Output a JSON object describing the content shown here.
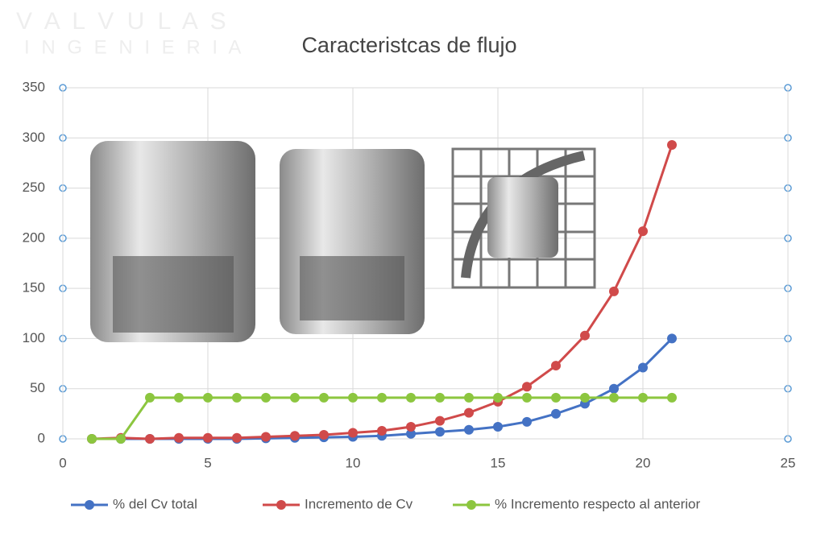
{
  "watermark": [
    "V A L V U L A S",
    "I N G E N I E R I A"
  ],
  "chart_data": {
    "type": "line",
    "title": "Caracteristcas de flujo",
    "x": [
      1,
      2,
      3,
      4,
      5,
      6,
      7,
      8,
      9,
      10,
      11,
      12,
      13,
      14,
      15,
      16,
      17,
      18,
      19,
      20,
      21
    ],
    "series": [
      {
        "name": "% del Cv total",
        "color": "#4472c4",
        "values": [
          0,
          0,
          0,
          0,
          0,
          0,
          0.5,
          1,
          1.5,
          2,
          3,
          5,
          7,
          9,
          12,
          17,
          25,
          35,
          50,
          71,
          100
        ]
      },
      {
        "name": "Incremento de Cv",
        "color": "#d04a4a",
        "values": [
          0,
          1,
          0,
          1,
          1,
          1,
          2,
          3,
          4,
          6,
          8,
          12,
          18,
          26,
          37,
          52,
          73,
          103,
          147,
          207,
          293
        ]
      },
      {
        "name": "% Incremento respecto al anterior",
        "color": "#8cc63f",
        "values": [
          0,
          0,
          41,
          41,
          41,
          41,
          41,
          41,
          41,
          41,
          41,
          41,
          41,
          41,
          41,
          41,
          41,
          41,
          41,
          41,
          41
        ]
      }
    ],
    "xlim": [
      0,
      25
    ],
    "xticks": [
      0,
      5,
      10,
      15,
      20,
      25
    ],
    "ylim": [
      0,
      350
    ],
    "yticks": [
      0,
      50,
      100,
      150,
      200,
      250,
      300,
      350
    ],
    "grid": true,
    "legend": "bottom"
  }
}
